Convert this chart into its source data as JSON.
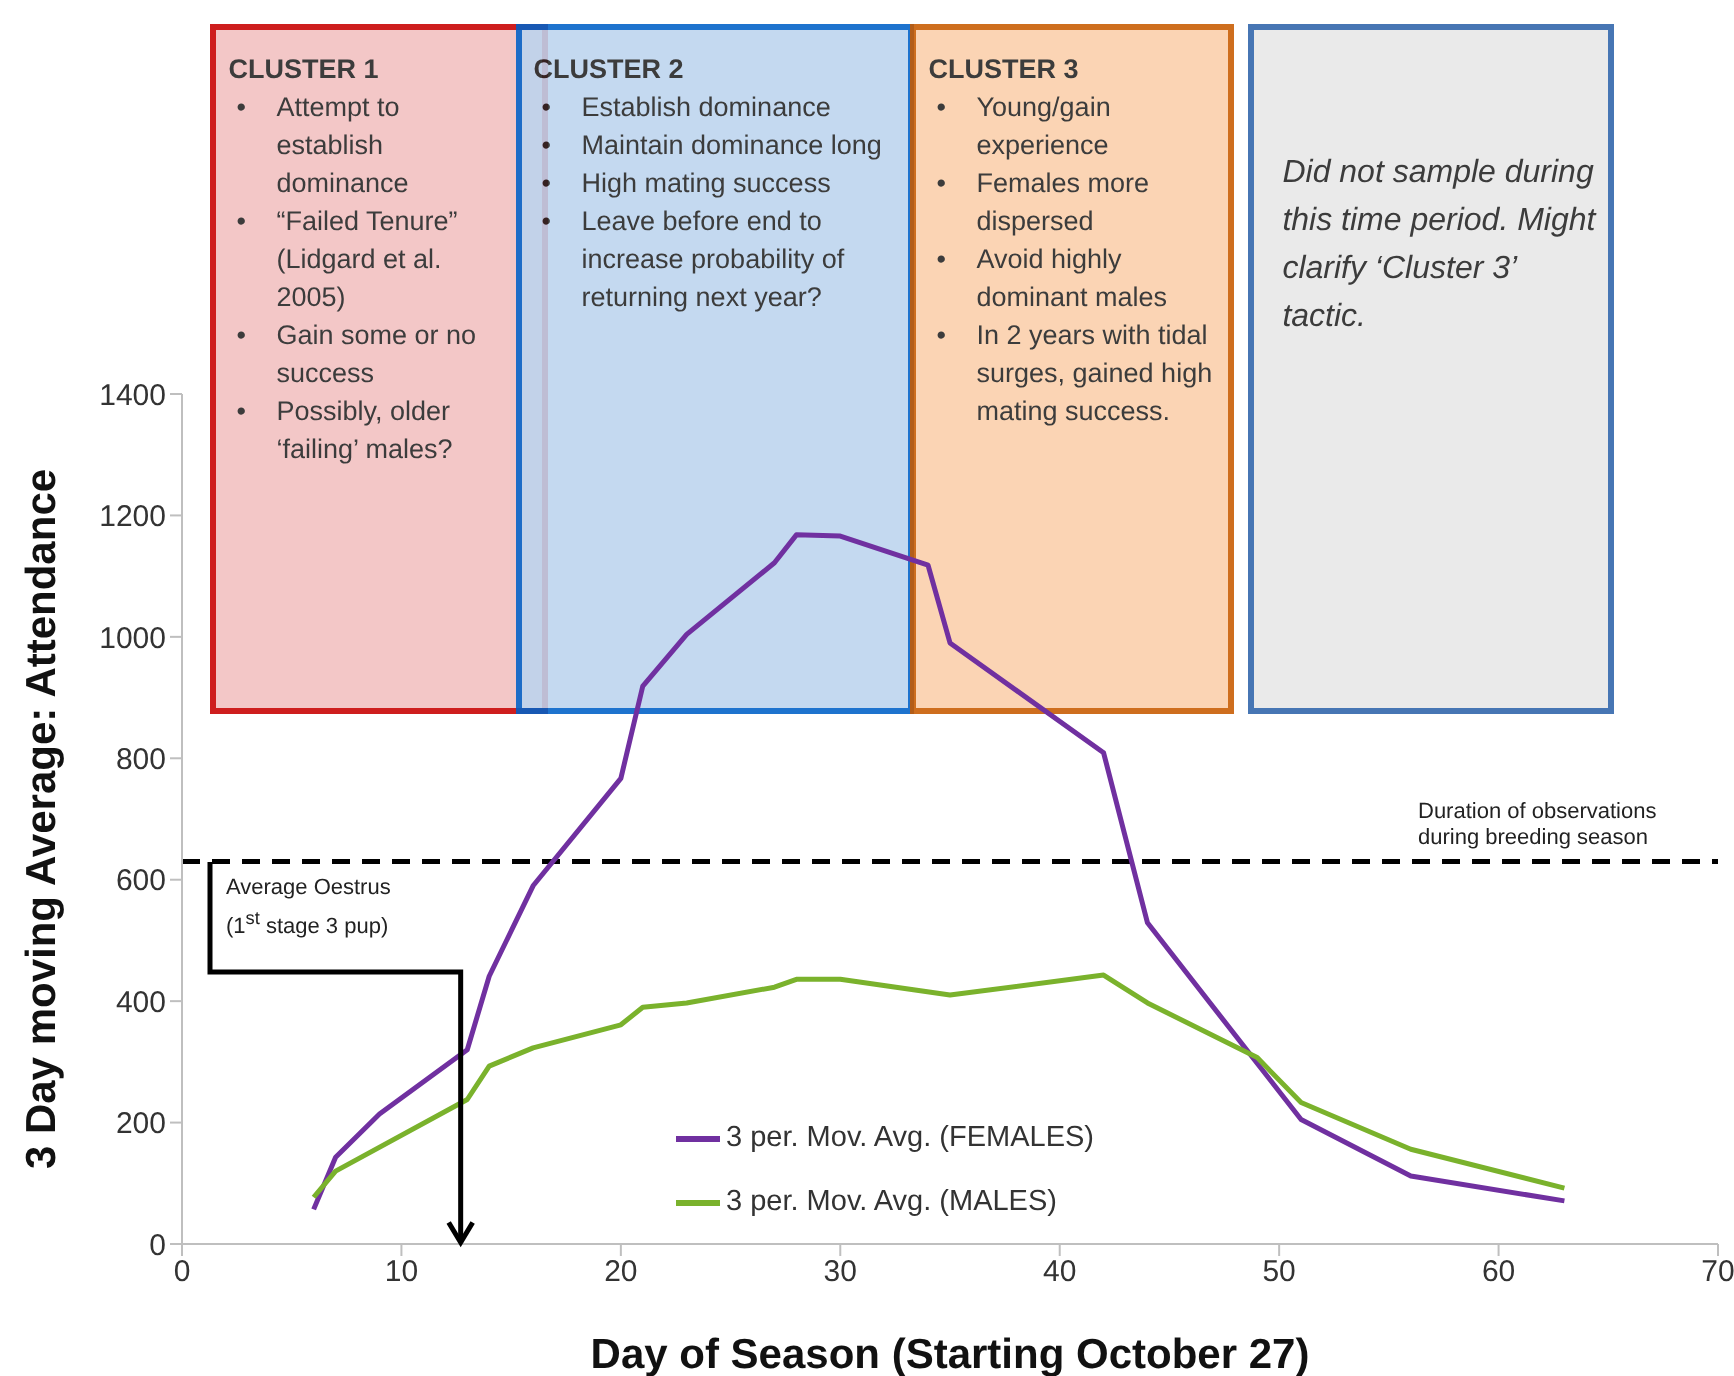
{
  "chart_data": {
    "type": "line",
    "xlabel": "Day of Season (Starting October 27)",
    "ylabel": "3 Day moving Average: Attendance",
    "xlim": [
      0,
      70
    ],
    "xticks": [
      0,
      10,
      20,
      30,
      40,
      50,
      60,
      70
    ],
    "ylim": [
      0,
      1400
    ],
    "yticks": [
      0,
      200,
      400,
      600,
      800,
      1000,
      1200,
      1400
    ],
    "grid": false,
    "legend": "bottom",
    "marker": "none",
    "series": [
      {
        "name": "3 per. Mov. Avg. (FEMALES)",
        "color": "#7030a0",
        "x": [
          6,
          7,
          9,
          13,
          14,
          16,
          20,
          21,
          23,
          27,
          28,
          30,
          34,
          35,
          42,
          44,
          51,
          56,
          63
        ],
        "values": [
          57,
          143,
          214,
          320,
          441,
          590,
          767,
          919,
          1004,
          1122,
          1168,
          1166,
          1118,
          990,
          809,
          529,
          205,
          112,
          71
        ]
      },
      {
        "name": "3 per. Mov. Avg. (MALES)",
        "color": "#7ab22c",
        "x": [
          6,
          7,
          13,
          14,
          16,
          20,
          21,
          23,
          27,
          28,
          30,
          35,
          42,
          44,
          49,
          51,
          56,
          63
        ],
        "values": [
          77,
          120,
          238,
          293,
          323,
          361,
          390,
          397,
          423,
          436,
          436,
          410,
          443,
          397,
          307,
          233,
          156,
          92
        ]
      }
    ],
    "ref_lines": [
      {
        "axis": "y",
        "value": 630,
        "label": "Duration of observations\nduring breeding season",
        "color": "#000000",
        "line_style": "dashed"
      },
      {
        "axis": "x",
        "value": 12.7,
        "label": "Average Oestrus\n(1$^{st}$ stage 3 pup)",
        "color": "#000000",
        "line_style": "solid"
      }
    ],
    "bands": [
      {
        "axis": "x",
        "from": 1.3,
        "to": 16.7,
        "color": "#f2c0c0",
        "label": "CLUSTER 1\n• Attempt to establish dominance\n• “Failed Tenure” (Lidgard et al. 2005)\n• Gain some or no success\n• Possibly, older ‘failing’ males?"
      },
      {
        "axis": "x",
        "from": 15.2,
        "to": 33.4,
        "color": "#bcd4ee",
        "label": "CLUSTER 2\n• Establish dominance\n• Maintain dominance long\n• High mating success\n• Leave before end to increase probability of returning next year?"
      },
      {
        "axis": "x",
        "from": 33.2,
        "to": 47.9,
        "color": "#fbcfaa",
        "label": "CLUSTER 3\n• Young/gain experience\n• Females more dispersed\n• Avoid highly dominant males\n• In 2 years with tidal surges, gained high mating success."
      },
      {
        "axis": "x",
        "from": 48.6,
        "to": 65.3,
        "color": "#e8e8e8",
        "label": "Did not sample during this time period. Might clarify ‘Cluster 3’ tactic."
      }
    ]
  }
}
